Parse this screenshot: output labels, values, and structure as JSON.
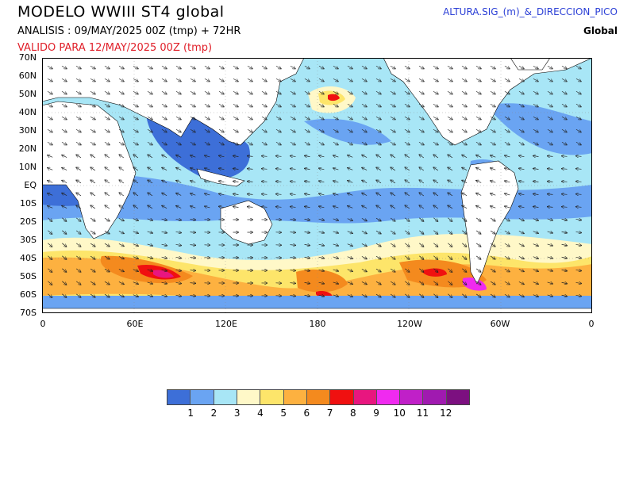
{
  "header": {
    "title": "MODELO  WWIII  ST4  global",
    "analysis": "ANALISIS : 09/MAY/2025 00Z  (tmp) + 72HR",
    "valid": "VALIDO PARA  12/MAY/2025 00Z  (tmp)",
    "variable": "ALTURA.SIG_(m)_&_DIRECCION_PICO",
    "region": "Global"
  },
  "map": {
    "lat_labels": [
      "70N",
      "60N",
      "50N",
      "40N",
      "30N",
      "20N",
      "10N",
      "EQ",
      "10S",
      "20S",
      "30S",
      "40S",
      "50S",
      "60S",
      "70S"
    ],
    "lon_labels": [
      "0",
      "60E",
      "120E",
      "180",
      "120W",
      "60W",
      "0"
    ],
    "colors": {
      "ocean_base": "#9fe2f4",
      "calm": "#5b8fe6",
      "calm_dark": "#3d6fd8",
      "land": "#ffffff",
      "coast": "#000000"
    }
  },
  "colorbar": {
    "labels": [
      "1",
      "2",
      "3",
      "4",
      "5",
      "6",
      "7",
      "8",
      "9",
      "10",
      "11",
      "12"
    ],
    "colors": [
      "#3d6fd8",
      "#6aa4f2",
      "#a8e6f6",
      "#fff8c8",
      "#fde56a",
      "#fdb140",
      "#f48a1e",
      "#f01010",
      "#e8167f",
      "#f02af0",
      "#c020c8",
      "#a01ab0",
      "#7c1080"
    ]
  }
}
